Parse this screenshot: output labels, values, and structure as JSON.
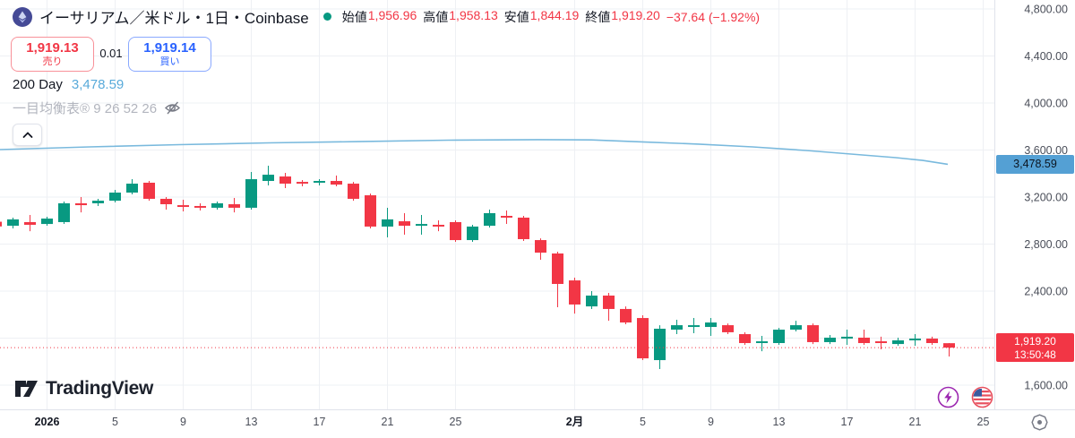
{
  "header": {
    "symbol_title": "イーサリアム／米ドル・1日・Coinbase",
    "status_color": "#089981",
    "ohlc_legend": {
      "open": {
        "label": "始値",
        "value": "1,956.96"
      },
      "high": {
        "label": "高値",
        "value": "1,958.13"
      },
      "low": {
        "label": "安値",
        "value": "1,844.19"
      },
      "close": {
        "label": "終値",
        "value": "1,919.20"
      },
      "change": "−37.64 (−1.92%)"
    }
  },
  "trade_panel": {
    "sell": {
      "price": "1,919.13",
      "label": "売り"
    },
    "buy": {
      "price": "1,919.14",
      "label": "買い"
    },
    "spread": "0.01"
  },
  "indicators": {
    "ma": {
      "name": "200 Day",
      "value": "3,478.59"
    },
    "ichimoku": {
      "name": "一目均衡表® 9 26 52 26",
      "hidden": true
    }
  },
  "footer": {
    "logo_text": "TradingView"
  },
  "chart_data": {
    "type": "candlestick",
    "title": "イーサリアム／米ドル",
    "interval": "1日",
    "exchange": "Coinbase",
    "grid": true,
    "colors": {
      "up": "#089981",
      "down": "#f23645",
      "ma": "#79b9dd",
      "grid": "#eef0f4",
      "axis_line": "#e0e3eb",
      "axis_text": "#4a4e59",
      "axis_text_major": "#131722"
    },
    "y_axis": {
      "min": 1450,
      "max": 4870,
      "ticks": [
        {
          "label": "4,800.00",
          "value": 4800
        },
        {
          "label": "4,400.00",
          "value": 4400
        },
        {
          "label": "4,000.00",
          "value": 4000
        },
        {
          "label": "3,600.00",
          "value": 3600
        },
        {
          "label": "3,200.00",
          "value": 3200
        },
        {
          "label": "2,800.00",
          "value": 2800
        },
        {
          "label": "2,400.00",
          "value": 2400
        },
        {
          "label": "2,000.00",
          "value": 2000
        },
        {
          "label": "1,600.00",
          "value": 1600
        }
      ]
    },
    "x_axis": {
      "ticks": [
        {
          "label": "2026",
          "day": 3,
          "major": true
        },
        {
          "label": "5",
          "day": 7
        },
        {
          "label": "9",
          "day": 11
        },
        {
          "label": "13",
          "day": 15
        },
        {
          "label": "17",
          "day": 19
        },
        {
          "label": "21",
          "day": 23
        },
        {
          "label": "25",
          "day": 27
        },
        {
          "label": "2月",
          "day": 34,
          "major": true
        },
        {
          "label": "5",
          "day": 38
        },
        {
          "label": "9",
          "day": 42
        },
        {
          "label": "13",
          "day": 46
        },
        {
          "label": "17",
          "day": 50
        },
        {
          "label": "21",
          "day": 54
        },
        {
          "label": "25",
          "day": 58
        }
      ]
    },
    "candles_ohlc": [
      [
        2990,
        3000,
        2940,
        2950
      ],
      [
        2956,
        3025,
        2933,
        3010
      ],
      [
        2987,
        3048,
        2910,
        2964
      ],
      [
        2971,
        3032,
        2956,
        3017
      ],
      [
        2987,
        3162,
        2971,
        3147
      ],
      [
        3147,
        3200,
        3070,
        3131
      ],
      [
        3147,
        3185,
        3124,
        3169
      ],
      [
        3169,
        3261,
        3154,
        3238
      ],
      [
        3238,
        3352,
        3223,
        3314
      ],
      [
        3322,
        3337,
        3169,
        3185
      ],
      [
        3185,
        3200,
        3093,
        3139
      ],
      [
        3131,
        3177,
        3078,
        3116
      ],
      [
        3124,
        3147,
        3086,
        3109
      ],
      [
        3109,
        3162,
        3093,
        3147
      ],
      [
        3139,
        3192,
        3070,
        3109
      ],
      [
        3109,
        3413,
        3093,
        3352
      ],
      [
        3337,
        3467,
        3299,
        3390
      ],
      [
        3375,
        3406,
        3276,
        3314
      ],
      [
        3329,
        3345,
        3291,
        3314
      ],
      [
        3322,
        3352,
        3299,
        3337
      ],
      [
        3337,
        3383,
        3291,
        3306
      ],
      [
        3314,
        3329,
        3169,
        3185
      ],
      [
        3215,
        3230,
        2933,
        2949
      ],
      [
        2949,
        3109,
        2857,
        3010
      ],
      [
        2994,
        3063,
        2880,
        2956
      ],
      [
        2956,
        3048,
        2880,
        2971
      ],
      [
        2964,
        3002,
        2910,
        2949
      ],
      [
        2987,
        3002,
        2819,
        2834
      ],
      [
        2834,
        2964,
        2819,
        2949
      ],
      [
        2956,
        3093,
        2941,
        3063
      ],
      [
        3040,
        3086,
        2971,
        3025
      ],
      [
        3025,
        3040,
        2827,
        2842
      ],
      [
        2834,
        2849,
        2667,
        2727
      ],
      [
        2720,
        2735,
        2263,
        2461
      ],
      [
        2491,
        2514,
        2209,
        2286
      ],
      [
        2270,
        2400,
        2248,
        2362
      ],
      [
        2362,
        2385,
        2148,
        2248
      ],
      [
        2248,
        2270,
        2118,
        2133
      ],
      [
        2171,
        2194,
        1813,
        1828
      ],
      [
        1813,
        2110,
        1737,
        2080
      ],
      [
        2072,
        2156,
        2034,
        2110
      ],
      [
        2095,
        2171,
        2042,
        2110
      ],
      [
        2095,
        2171,
        2019,
        2133
      ],
      [
        2110,
        2125,
        2034,
        2050
      ],
      [
        2034,
        2050,
        1943,
        1958
      ],
      [
        1958,
        2019,
        1889,
        1973
      ],
      [
        1958,
        2087,
        1943,
        2072
      ],
      [
        2072,
        2148,
        2057,
        2110
      ],
      [
        2110,
        2125,
        1950,
        1966
      ],
      [
        1966,
        2027,
        1950,
        2004
      ],
      [
        1996,
        2072,
        1943,
        2012
      ],
      [
        2004,
        2072,
        1943,
        1958
      ],
      [
        1973,
        2012,
        1905,
        1958
      ],
      [
        1950,
        2004,
        1935,
        1981
      ],
      [
        1981,
        2034,
        1935,
        1996
      ],
      [
        1996,
        2012,
        1943,
        1958
      ],
      [
        1956.96,
        1958.13,
        1844.19,
        1919.2
      ]
    ],
    "ma200": {
      "name": "200 Day",
      "last_value": 3478.59,
      "points_x_price": [
        [
          0,
          3604
        ],
        [
          100,
          3627
        ],
        [
          200,
          3646
        ],
        [
          300,
          3661
        ],
        [
          400,
          3672
        ],
        [
          500,
          3684
        ],
        [
          600,
          3688
        ],
        [
          660,
          3686
        ],
        [
          720,
          3668
        ],
        [
          780,
          3650
        ],
        [
          840,
          3627
        ],
        [
          900,
          3596
        ],
        [
          950,
          3566
        ],
        [
          1000,
          3535
        ],
        [
          1030,
          3512
        ],
        [
          1058,
          3479
        ]
      ]
    },
    "last_price": {
      "value": "1,919.20",
      "countdown": "13:50:48",
      "numeric": 1919.2
    }
  }
}
